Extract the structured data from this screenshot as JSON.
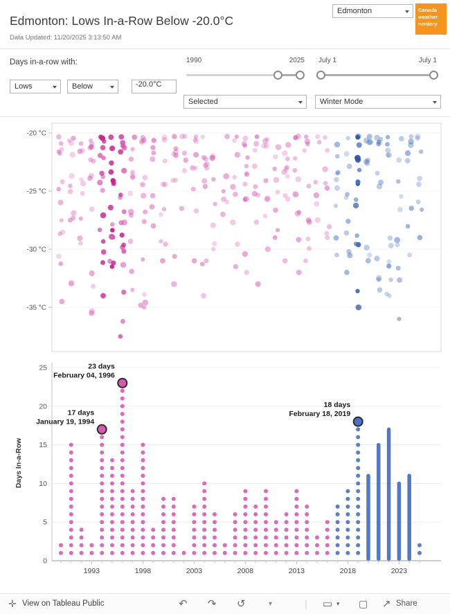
{
  "header": {
    "title": "Edmonton: Lows In-a-Row Below -20.0°C",
    "subtitle": "Data Updated: 11/20/2025 3:13:50 AM",
    "city_selected": "Edmonton",
    "logo_text": "Canada weather nerdery"
  },
  "controls": {
    "days_label": "Days in-a-row with:",
    "year_slider": {
      "start_label": "1990",
      "end_label": "2025"
    },
    "date_slider": {
      "start_label": "July 1",
      "end_label": "July 1"
    },
    "metric": "Lows",
    "operator": "Below",
    "threshold": "-20.0°C",
    "selection_mode": "Selected",
    "season_mode": "Winter Mode"
  },
  "footer": {
    "view_label": "View on Tableau Public",
    "share_label": "Share"
  },
  "icons": {
    "tableau": "✛",
    "undo": "↶",
    "redo": "↷",
    "replay": "↺",
    "caret": "▾",
    "separator": "|",
    "display": "▭",
    "fullscreen": "▢",
    "share": "↗"
  },
  "colors": {
    "pink": "#d75ab2",
    "pink_strong": "#c9238f",
    "blue": "#4a72c0",
    "blue_strong": "#2f56a4",
    "accent_orange": "#f7941e",
    "annotation_ring": "#2b2b2b"
  },
  "chart_data": [
    {
      "type": "scatter",
      "title": "Daily low temperatures below -20.0°C, by winter",
      "x_range": [
        1990,
        2025
      ],
      "y_range": [
        -38,
        -19.5
      ],
      "color_split_year": 2017,
      "y_ticks": [
        {
          "value": -20,
          "label": "-20 °C"
        },
        {
          "value": -25,
          "label": "-25 °C"
        },
        {
          "value": -30,
          "label": "-30 °C"
        },
        {
          "value": -35,
          "label": "-35 °C"
        }
      ],
      "years": [
        {
          "year": 1990,
          "count": 14,
          "min": -34.5,
          "highlight": false
        },
        {
          "year": 1991,
          "count": 12,
          "min": -33.0,
          "highlight": false
        },
        {
          "year": 1992,
          "count": 9,
          "min": -29.5,
          "highlight": false
        },
        {
          "year": 1993,
          "count": 14,
          "min": -35.5,
          "highlight": false
        },
        {
          "year": 1994,
          "count": 16,
          "min": -34.0,
          "highlight": true
        },
        {
          "year": 1995,
          "count": 14,
          "min": -31.5,
          "highlight": true
        },
        {
          "year": 1996,
          "count": 20,
          "min": -37.5,
          "highlight": true
        },
        {
          "year": 1997,
          "count": 13,
          "min": -33.5,
          "highlight": false
        },
        {
          "year": 1998,
          "count": 14,
          "min": -35.0,
          "highlight": false
        },
        {
          "year": 1999,
          "count": 8,
          "min": -28.0,
          "highlight": false
        },
        {
          "year": 2000,
          "count": 10,
          "min": -31.0,
          "highlight": false
        },
        {
          "year": 2001,
          "count": 9,
          "min": -33.0,
          "highlight": false
        },
        {
          "year": 2002,
          "count": 6,
          "min": -26.5,
          "highlight": false
        },
        {
          "year": 2003,
          "count": 9,
          "min": -31.0,
          "highlight": false
        },
        {
          "year": 2004,
          "count": 11,
          "min": -34.0,
          "highlight": false
        },
        {
          "year": 2005,
          "count": 8,
          "min": -30.0,
          "highlight": false
        },
        {
          "year": 2006,
          "count": 6,
          "min": -27.0,
          "highlight": false
        },
        {
          "year": 2007,
          "count": 9,
          "min": -31.5,
          "highlight": false
        },
        {
          "year": 2008,
          "count": 12,
          "min": -32.0,
          "highlight": false
        },
        {
          "year": 2009,
          "count": 10,
          "min": -33.0,
          "highlight": false
        },
        {
          "year": 2010,
          "count": 9,
          "min": -30.0,
          "highlight": false
        },
        {
          "year": 2011,
          "count": 8,
          "min": -29.0,
          "highlight": false
        },
        {
          "year": 2012,
          "count": 10,
          "min": -31.0,
          "highlight": false
        },
        {
          "year": 2013,
          "count": 11,
          "min": -32.0,
          "highlight": false
        },
        {
          "year": 2014,
          "count": 10,
          "min": -31.0,
          "highlight": false
        },
        {
          "year": 2015,
          "count": 6,
          "min": -27.5,
          "highlight": false
        },
        {
          "year": 2016,
          "count": 8,
          "min": -29.0,
          "highlight": false
        },
        {
          "year": 2017,
          "count": 9,
          "min": -30.5,
          "highlight": false
        },
        {
          "year": 2018,
          "count": 10,
          "min": -32.0,
          "highlight": false
        },
        {
          "year": 2019,
          "count": 16,
          "min": -35.0,
          "highlight": true
        },
        {
          "year": 2020,
          "count": 10,
          "min": -31.0,
          "highlight": false
        },
        {
          "year": 2021,
          "count": 12,
          "min": -33.5,
          "highlight": false
        },
        {
          "year": 2022,
          "count": 13,
          "min": -34.0,
          "highlight": false
        },
        {
          "year": 2023,
          "count": 10,
          "min": -36.0,
          "highlight": false
        },
        {
          "year": 2024,
          "count": 8,
          "min": -30.5,
          "highlight": false
        },
        {
          "year": 2025,
          "count": 8,
          "min": -29.0,
          "highlight": false
        }
      ]
    },
    {
      "type": "bar",
      "ylabel": "Days In-a-Row",
      "y_ticks": [
        0,
        5,
        10,
        15,
        20,
        25
      ],
      "x_tick_years": [
        1993,
        1998,
        2003,
        2008,
        2013,
        2018,
        2023
      ],
      "color_split_year": 2017,
      "values": [
        {
          "year": 1990,
          "days": 2
        },
        {
          "year": 1991,
          "days": 15
        },
        {
          "year": 1992,
          "days": 4
        },
        {
          "year": 1993,
          "days": 2
        },
        {
          "year": 1994,
          "days": 17
        },
        {
          "year": 1995,
          "days": 13
        },
        {
          "year": 1996,
          "days": 23
        },
        {
          "year": 1997,
          "days": 9
        },
        {
          "year": 1998,
          "days": 15
        },
        {
          "year": 1999,
          "days": 4
        },
        {
          "year": 2000,
          "days": 8
        },
        {
          "year": 2001,
          "days": 8
        },
        {
          "year": 2002,
          "days": 1
        },
        {
          "year": 2003,
          "days": 7
        },
        {
          "year": 2004,
          "days": 10
        },
        {
          "year": 2005,
          "days": 6
        },
        {
          "year": 2006,
          "days": 2
        },
        {
          "year": 2007,
          "days": 6
        },
        {
          "year": 2008,
          "days": 9
        },
        {
          "year": 2009,
          "days": 7
        },
        {
          "year": 2010,
          "days": 9
        },
        {
          "year": 2011,
          "days": 5
        },
        {
          "year": 2012,
          "days": 6
        },
        {
          "year": 2013,
          "days": 9
        },
        {
          "year": 2014,
          "days": 7
        },
        {
          "year": 2015,
          "days": 3
        },
        {
          "year": 2016,
          "days": 5
        },
        {
          "year": 2017,
          "days": 7
        },
        {
          "year": 2018,
          "days": 9
        },
        {
          "year": 2019,
          "days": 18
        },
        {
          "year": 2020,
          "days": 11,
          "solid": true
        },
        {
          "year": 2021,
          "days": 15,
          "solid": true
        },
        {
          "year": 2022,
          "days": 17,
          "solid": true
        },
        {
          "year": 2023,
          "days": 10,
          "solid": true
        },
        {
          "year": 2024,
          "days": 11,
          "solid": true
        },
        {
          "year": 2025,
          "days": 2
        }
      ],
      "annotations": [
        {
          "line1": "17 days",
          "line2": "January 19, 1994",
          "year": 1994,
          "value": 17
        },
        {
          "line1": "23 days",
          "line2": "February 04, 1996",
          "year": 1996,
          "value": 23
        },
        {
          "line1": "18 days",
          "line2": "February 18, 2019",
          "year": 2019,
          "value": 18
        }
      ]
    }
  ]
}
